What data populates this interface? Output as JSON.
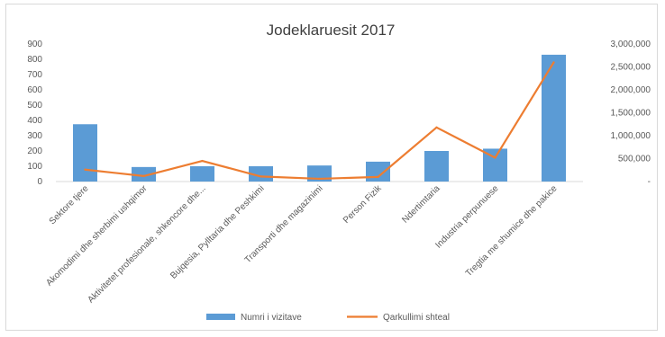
{
  "chart_data": {
    "type": "bar",
    "title": "Jodeklaruesit 2017",
    "categories": [
      "Sektore tjere",
      "Akomodimi dhe sherbimi ushqimor",
      "Aktivitetet profesionale, shkencore dhe...",
      "Bujqesia, Pylltaria dhe Peshkimi",
      "Transporti dhe magazinimi",
      "Person Fizik",
      "Ndertimtaria",
      "Industria perpunuese",
      "Tregtia me shumice dhe pakice"
    ],
    "series": [
      {
        "name": "Numri i vizitave",
        "type": "bar",
        "axis": "left",
        "color": "#5b9bd5",
        "values": [
          375,
          95,
          100,
          100,
          105,
          130,
          200,
          215,
          830
        ]
      },
      {
        "name": "Qarkullimi shteal",
        "type": "line",
        "axis": "right",
        "color": "#ed7d31",
        "values": [
          260000,
          120000,
          450000,
          110000,
          60000,
          100000,
          1180000,
          520000,
          2600000
        ]
      }
    ],
    "y_left": {
      "min": 0,
      "max": 900,
      "ticks": [
        0,
        100,
        200,
        300,
        400,
        500,
        600,
        700,
        800,
        900
      ]
    },
    "y_right": {
      "min": 0,
      "max": 3000000,
      "ticks": [
        "-",
        "500,000",
        "1,000,000",
        "1,500,000",
        "2,000,000",
        "2,500,000",
        "3,000,000"
      ]
    },
    "legend_position": "bottom",
    "grid": false
  }
}
